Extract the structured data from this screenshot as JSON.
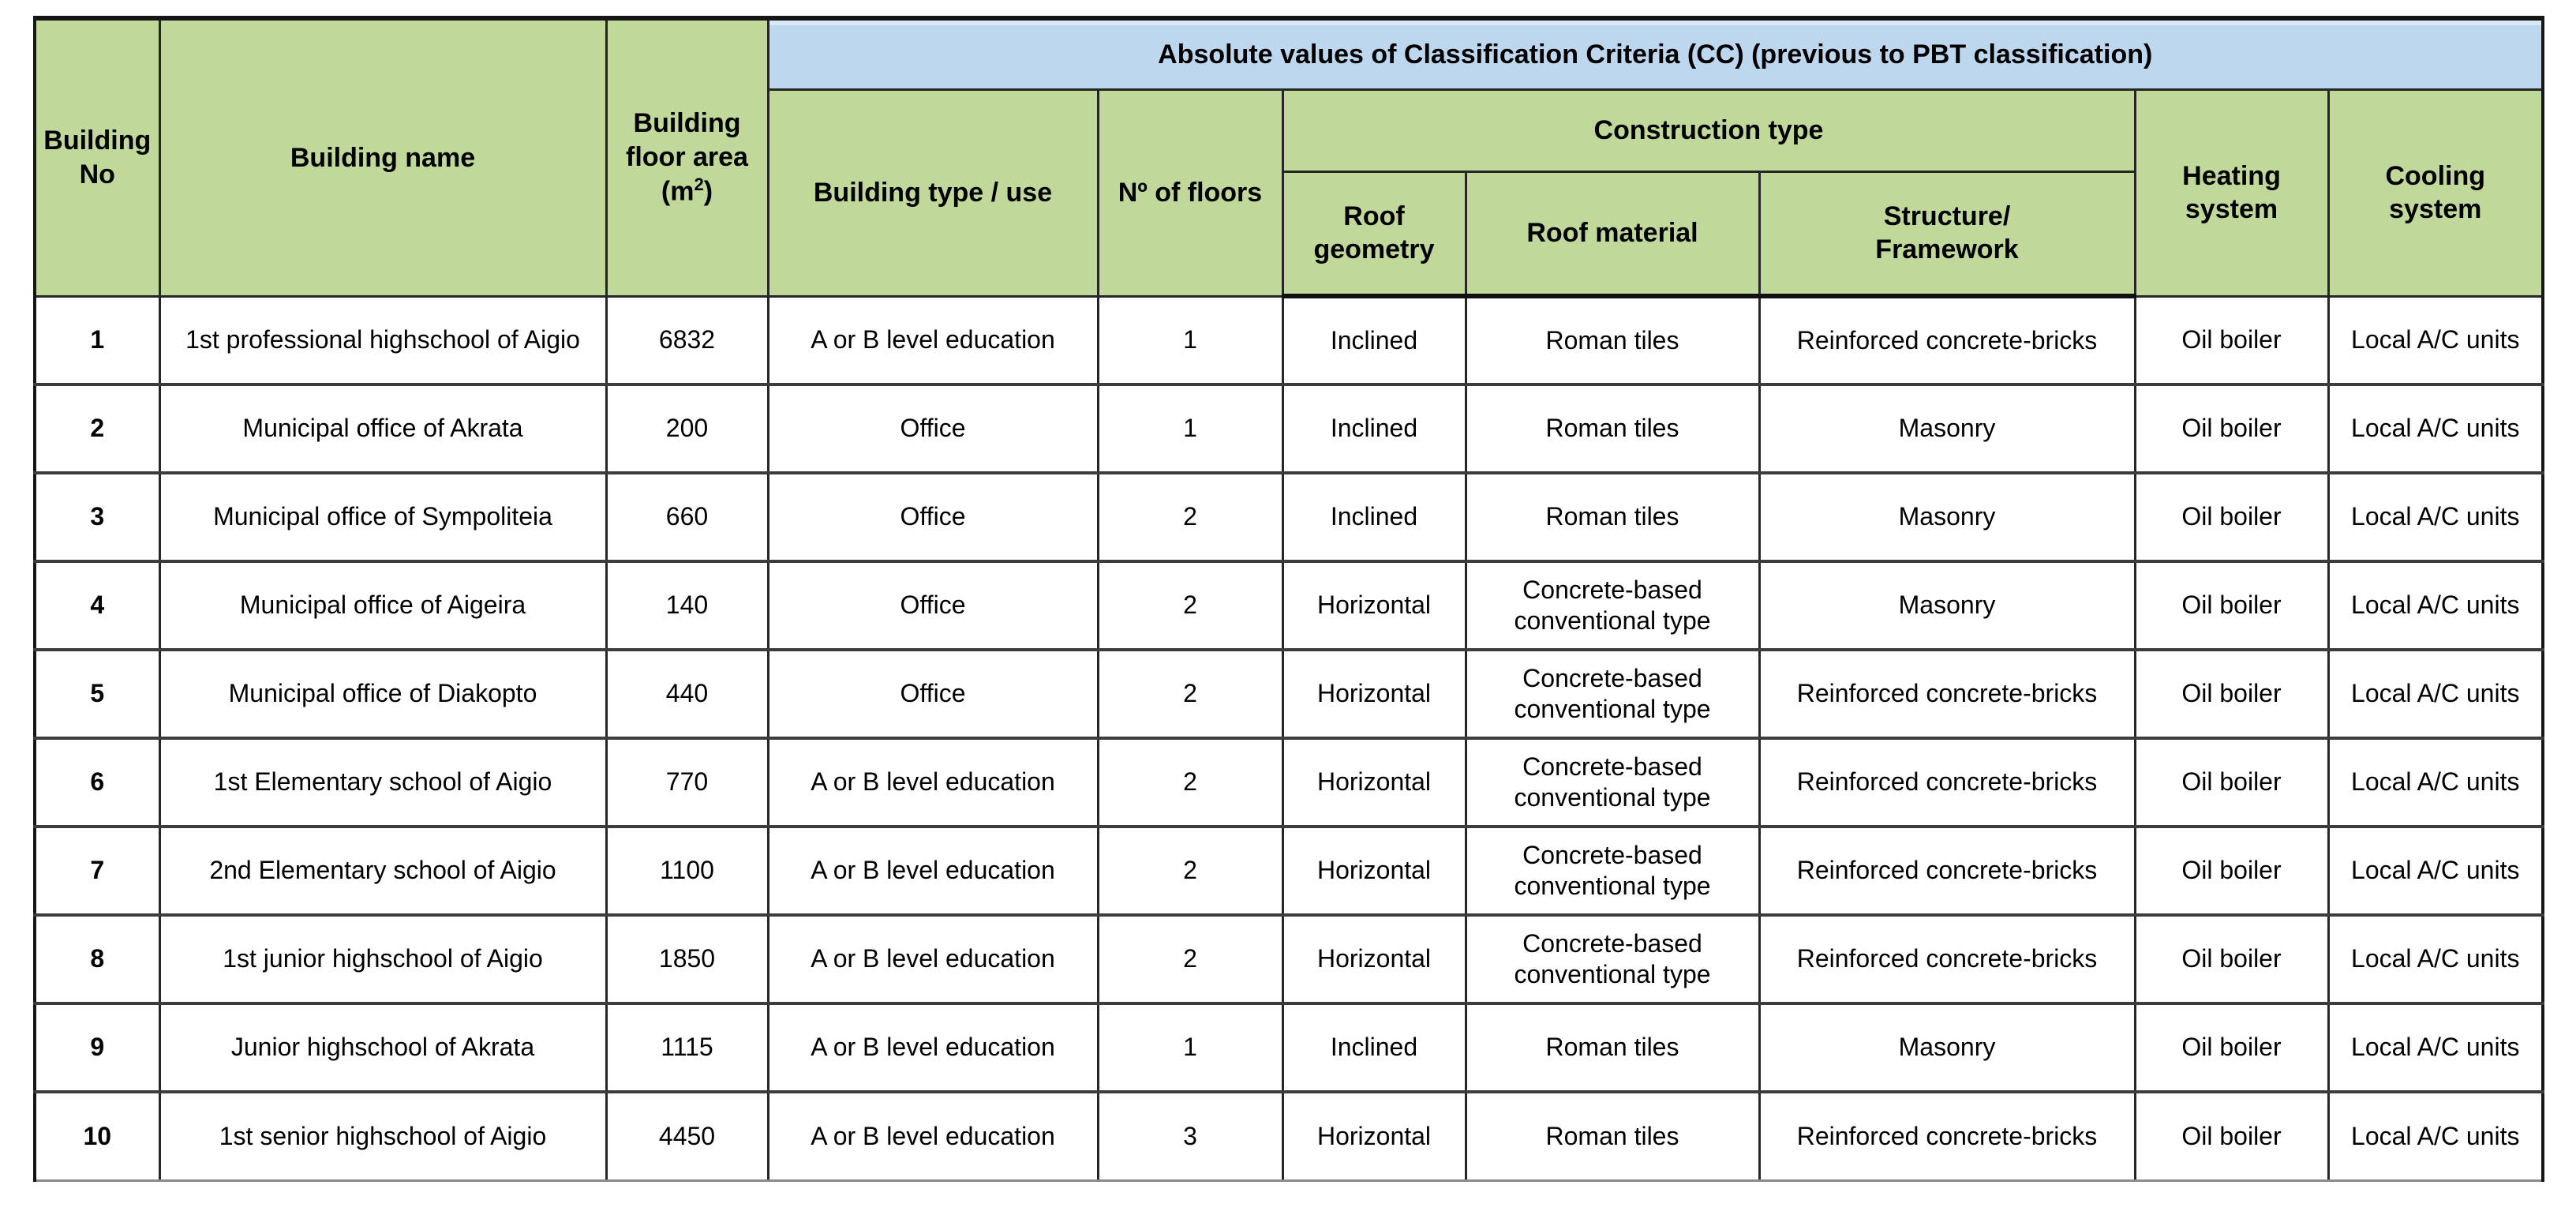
{
  "colors": {
    "header_green": "#c1d89b",
    "banner_blue": "#bdd7ee",
    "border_dark": "#262626",
    "cell_white": "#ffffff"
  },
  "header": {
    "building_no": "Building\nNo",
    "building_name": "Building name",
    "floor_area": "Building\nfloor area",
    "floor_area_unit_open": "(m",
    "floor_area_unit_sup": "2",
    "floor_area_unit_close": ")",
    "cc_banner": "Absolute values of Classification Criteria (CC) (previous to PBT classification)",
    "building_type": "Building type / use",
    "num_floors": "Nº of floors",
    "construction_type": "Construction type",
    "roof_geometry": "Roof\ngeometry",
    "roof_material": "Roof material",
    "structure": "Structure/\nFramework",
    "heating": "Heating\nsystem",
    "cooling": "Cooling\nsystem"
  },
  "rows": [
    {
      "no": "1",
      "name": "1st professional highschool of Aigio",
      "area": "6832",
      "type": "A or B level education",
      "floors": "1",
      "roof_geometry": "Inclined",
      "roof_material": "Roman tiles",
      "structure": "Reinforced concrete-bricks",
      "heating": "Oil boiler",
      "cooling": "Local A/C units"
    },
    {
      "no": "2",
      "name": "Municipal office of Akrata",
      "area": "200",
      "type": "Office",
      "floors": "1",
      "roof_geometry": "Inclined",
      "roof_material": "Roman tiles",
      "structure": "Masonry",
      "heating": "Oil boiler",
      "cooling": "Local A/C units"
    },
    {
      "no": "3",
      "name": "Municipal office of Sympoliteia",
      "area": "660",
      "type": "Office",
      "floors": "2",
      "roof_geometry": "Inclined",
      "roof_material": "Roman tiles",
      "structure": "Masonry",
      "heating": "Oil boiler",
      "cooling": "Local A/C units"
    },
    {
      "no": "4",
      "name": "Municipal office of Aigeira",
      "area": "140",
      "type": "Office",
      "floors": "2",
      "roof_geometry": "Horizontal",
      "roof_material": "Concrete-based conventional type",
      "structure": "Masonry",
      "heating": "Oil boiler",
      "cooling": "Local A/C units"
    },
    {
      "no": "5",
      "name": "Municipal office of Diakopto",
      "area": "440",
      "type": "Office",
      "floors": "2",
      "roof_geometry": "Horizontal",
      "roof_material": "Concrete-based conventional type",
      "structure": "Reinforced concrete-bricks",
      "heating": "Oil boiler",
      "cooling": "Local A/C units"
    },
    {
      "no": "6",
      "name": "1st Elementary school of Aigio",
      "area": "770",
      "type": "A or B level education",
      "floors": "2",
      "roof_geometry": "Horizontal",
      "roof_material": "Concrete-based conventional type",
      "structure": "Reinforced concrete-bricks",
      "heating": "Oil boiler",
      "cooling": "Local A/C units"
    },
    {
      "no": "7",
      "name": "2nd Elementary school of Aigio",
      "area": "1100",
      "type": "A or B level education",
      "floors": "2",
      "roof_geometry": "Horizontal",
      "roof_material": "Concrete-based conventional type",
      "structure": "Reinforced concrete-bricks",
      "heating": "Oil boiler",
      "cooling": "Local A/C units"
    },
    {
      "no": "8",
      "name": "1st junior highschool of Aigio",
      "area": "1850",
      "type": "A or B level education",
      "floors": "2",
      "roof_geometry": "Horizontal",
      "roof_material": "Concrete-based conventional type",
      "structure": "Reinforced concrete-bricks",
      "heating": "Oil boiler",
      "cooling": "Local A/C units"
    },
    {
      "no": "9",
      "name": "Junior highschool of Akrata",
      "area": "1115",
      "type": "A or B level education",
      "floors": "1",
      "roof_geometry": "Inclined",
      "roof_material": "Roman tiles",
      "structure": "Masonry",
      "heating": "Oil boiler",
      "cooling": "Local A/C units"
    },
    {
      "no": "10",
      "name": "1st senior highschool of Aigio",
      "area": "4450",
      "type": "A or B level education",
      "floors": "3",
      "roof_geometry": "Horizontal",
      "roof_material": "Roman tiles",
      "structure": "Reinforced concrete-bricks",
      "heating": "Oil boiler",
      "cooling": "Local A/C units"
    }
  ]
}
